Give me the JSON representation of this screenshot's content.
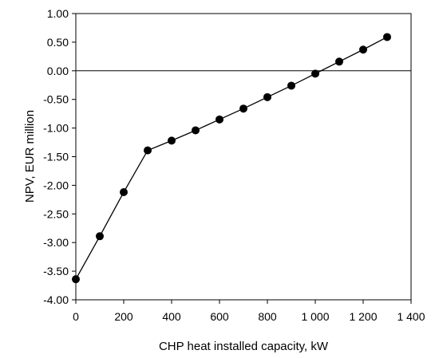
{
  "chart_data": {
    "type": "line",
    "title": "",
    "xlabel": "CHP heat installed capacity, kW",
    "ylabel": "NPV, EUR million",
    "xlim": [
      0,
      1400
    ],
    "ylim": [
      -4.0,
      1.0
    ],
    "x_ticks": [
      0,
      200,
      400,
      600,
      800,
      1000,
      1200,
      1400
    ],
    "x_tick_labels": [
      "0",
      "200",
      "400",
      "600",
      "800",
      "1 000",
      "1 200",
      "1 400"
    ],
    "y_ticks": [
      1.0,
      0.5,
      0.0,
      -0.5,
      -1.0,
      -1.5,
      -2.0,
      -2.5,
      -3.0,
      -3.5,
      -4.0
    ],
    "y_tick_labels": [
      "1.00",
      "0.50",
      "0.00",
      "-0.50",
      "-1.00",
      "-1.50",
      "-2.00",
      "-2.50",
      "-3.00",
      "-3.50",
      "-4.00"
    ],
    "grid": false,
    "zero_line": true,
    "series": [
      {
        "x": [
          0,
          100,
          200,
          300,
          400,
          500,
          600,
          700,
          800,
          900,
          1000,
          1100,
          1200,
          1300
        ],
        "y": [
          -3.64,
          -2.89,
          -2.12,
          -1.39,
          -1.22,
          -1.04,
          -0.85,
          -0.66,
          -0.46,
          -0.26,
          -0.05,
          0.16,
          0.37,
          0.59
        ],
        "color": "#000000",
        "marker": "circle"
      }
    ]
  }
}
